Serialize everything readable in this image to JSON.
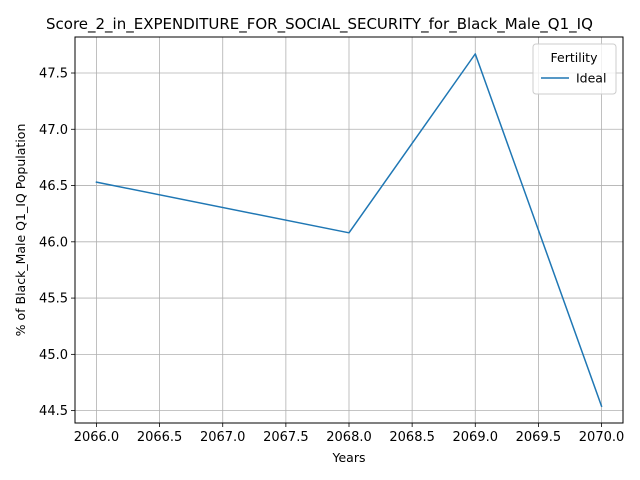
{
  "chart_data": {
    "type": "line",
    "title": "Score_2_in_EXPENDITURE_FOR_SOCIAL_SECURITY_for_Black_Male_Q1_IQ",
    "xlabel": "Years",
    "ylabel": "% of Black_Male Q1_IQ Population",
    "xlim": [
      2065.83,
      2070.17
    ],
    "ylim": [
      44.39,
      47.82
    ],
    "xticks": [
      "2066.0",
      "2066.5",
      "2067.0",
      "2067.5",
      "2068.0",
      "2068.5",
      "2069.0",
      "2069.5",
      "2070.0"
    ],
    "yticks": [
      "44.5",
      "45.0",
      "45.5",
      "46.0",
      "46.5",
      "47.0",
      "47.5"
    ],
    "grid": true,
    "legend": {
      "title": "Fertility",
      "placement": "top-right"
    },
    "series": [
      {
        "name": "Ideal",
        "color": "#1f77b4",
        "x": [
          2066,
          2068,
          2069,
          2070
        ],
        "y": [
          46.53,
          46.08,
          47.67,
          44.54
        ]
      }
    ]
  }
}
